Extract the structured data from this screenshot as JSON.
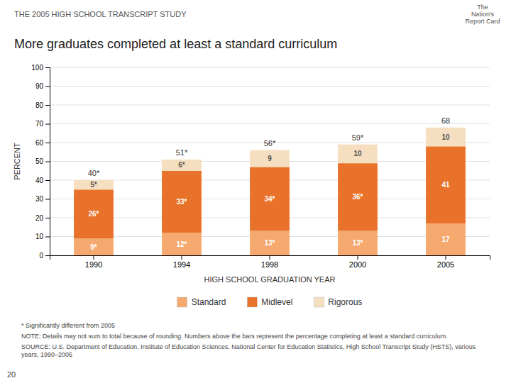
{
  "chart_data": {
    "type": "bar",
    "stacked": true,
    "subtitle": "THE 2005 HIGH SCHOOL TRANSCRIPT STUDY",
    "title": "More graduates completed at least a standard curriculum",
    "x_label": "HIGH SCHOOL GRADUATION YEAR",
    "y_label": "PERCENT",
    "categories": [
      "1990",
      "1994",
      "1998",
      "2000",
      "2005"
    ],
    "series": [
      {
        "name": "Standard",
        "color": "#F5A96E",
        "values": [
          9,
          12,
          13,
          13,
          17
        ],
        "value_labels": [
          "9*",
          "12*",
          "13*",
          "13*",
          "17"
        ]
      },
      {
        "name": "Midlevel",
        "color": "#E8722A",
        "values": [
          26,
          33,
          34,
          36,
          41
        ],
        "value_labels": [
          "26*",
          "33*",
          "34*",
          "36*",
          "41"
        ]
      },
      {
        "name": "Rigorous",
        "color": "#F5DFC0",
        "values": [
          5,
          6,
          9,
          10,
          10
        ],
        "value_labels": [
          "5*",
          "6*",
          "9",
          "10",
          "10"
        ]
      }
    ],
    "totals": {
      "values": [
        40,
        51,
        56,
        59,
        68
      ],
      "value_labels": [
        "40*",
        "51*",
        "56*",
        "59*",
        "68"
      ]
    },
    "data_labels": true,
    "ylim": [
      0,
      100
    ],
    "yticks": [
      0,
      10,
      20,
      30,
      40,
      50,
      60,
      70,
      80,
      90,
      100
    ],
    "grid": true,
    "legend": "bottom",
    "notes": [
      "* Significantly different from 2005",
      "NOTE: Details may not sum to total because of rounding. Numbers above the bars represent the percentage completing at least a standard curriculum.",
      "SOURCE: U.S. Department of Education, Institute of Education Sciences, National Center for Education Statistics, High School Transcript Study (HSTS), various years, 1990–2005"
    ],
    "annotations": [
      "The\nNation's\nReport Card",
      "20"
    ]
  }
}
